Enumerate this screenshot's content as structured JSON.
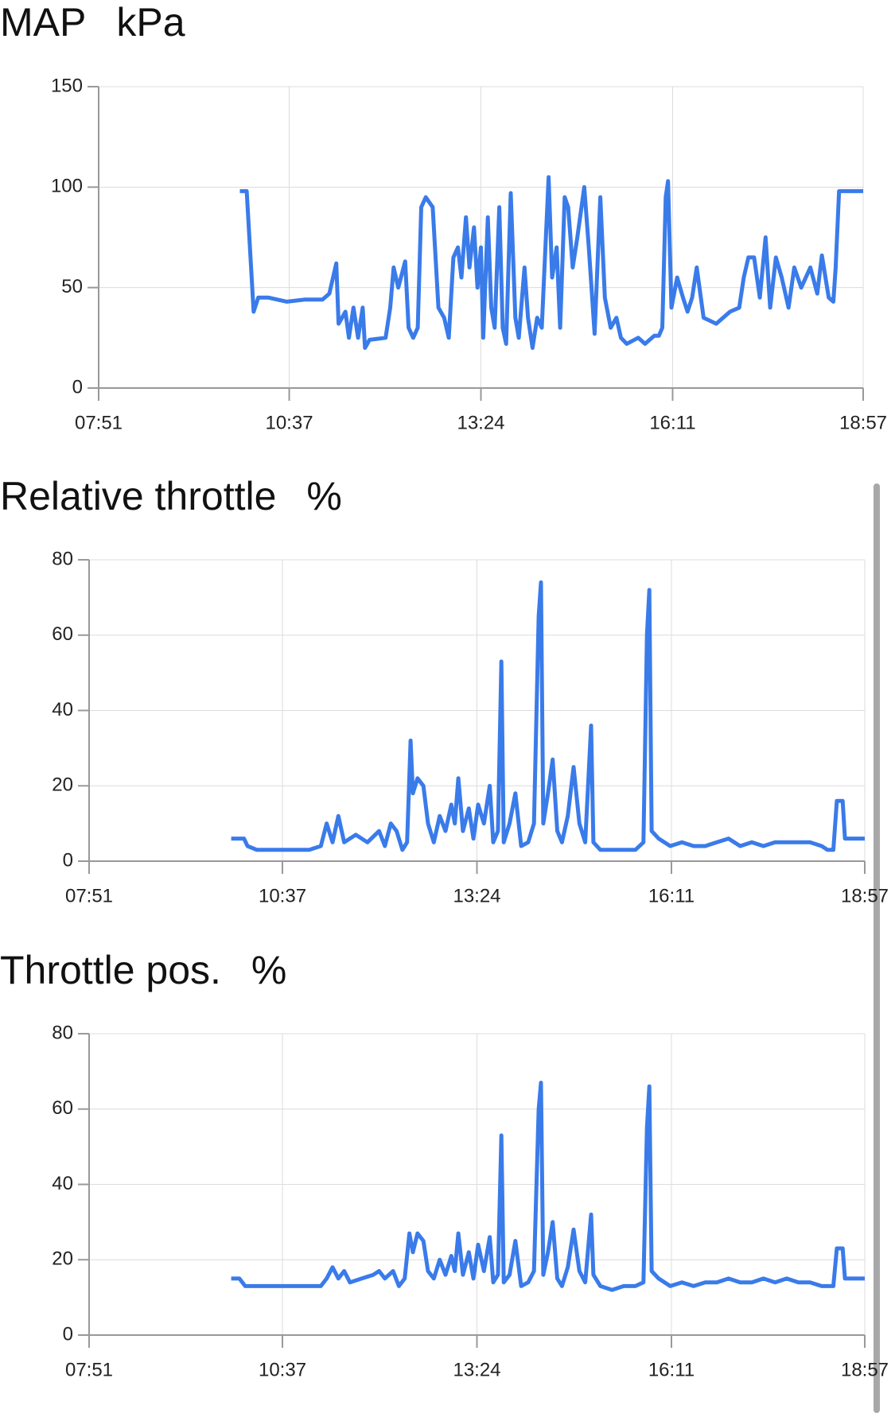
{
  "chart_data": [
    {
      "type": "line",
      "title": "MAP",
      "unit": "kPa",
      "color": "#3a7bea",
      "xlim": [
        "07:51",
        "18:57"
      ],
      "xticks": [
        "07:51",
        "10:37",
        "13:24",
        "16:11",
        "18:57"
      ],
      "ylim": [
        0,
        150
      ],
      "yticks": [
        0,
        50,
        100,
        150
      ],
      "grid": true,
      "x": [
        "09:54",
        "10:00",
        "10:06",
        "10:10",
        "10:19",
        "10:35",
        "10:50",
        "11:06",
        "11:12",
        "11:18",
        "11:20",
        "11:26",
        "11:29",
        "11:33",
        "11:37",
        "11:41",
        "11:43",
        "11:47",
        "12:01",
        "12:05",
        "12:08",
        "12:12",
        "12:18",
        "12:21",
        "12:25",
        "12:29",
        "12:32",
        "12:36",
        "12:42",
        "12:47",
        "12:52",
        "12:56",
        "13:00",
        "13:04",
        "13:07",
        "13:11",
        "13:14",
        "13:18",
        "13:21",
        "13:24",
        "13:26",
        "13:30",
        "13:33",
        "13:36",
        "13:40",
        "13:43",
        "13:46",
        "13:50",
        "13:54",
        "13:57",
        "14:02",
        "14:05",
        "14:09",
        "14:13",
        "14:17",
        "14:23",
        "14:26",
        "14:30",
        "14:33",
        "14:37",
        "14:40",
        "14:44",
        "14:48",
        "14:54",
        "14:58",
        "15:03",
        "15:08",
        "15:12",
        "15:17",
        "15:22",
        "15:26",
        "15:31",
        "15:41",
        "15:47",
        "15:55",
        "15:59",
        "16:02",
        "16:05",
        "16:07",
        "16:10",
        "16:15",
        "16:20",
        "16:24",
        "16:28",
        "16:32",
        "16:38",
        "16:49",
        "17:01",
        "17:09",
        "17:13",
        "17:17",
        "17:22",
        "17:27",
        "17:32",
        "17:36",
        "17:41",
        "17:46",
        "17:52",
        "17:57",
        "18:03",
        "18:11",
        "18:17",
        "18:21",
        "18:27",
        "18:31",
        "18:33",
        "18:36",
        "18:57"
      ],
      "values": [
        98,
        98,
        38,
        45,
        45,
        43,
        44,
        44,
        47,
        62,
        32,
        38,
        25,
        40,
        25,
        40,
        20,
        24,
        25,
        40,
        60,
        50,
        63,
        30,
        25,
        30,
        90,
        95,
        90,
        40,
        35,
        25,
        65,
        70,
        55,
        85,
        60,
        80,
        50,
        70,
        25,
        85,
        40,
        30,
        90,
        30,
        22,
        97,
        35,
        25,
        60,
        35,
        20,
        35,
        30,
        105,
        55,
        70,
        30,
        95,
        90,
        60,
        75,
        100,
        70,
        27,
        95,
        45,
        30,
        35,
        25,
        22,
        25,
        22,
        26,
        26,
        30,
        95,
        103,
        40,
        55,
        45,
        38,
        45,
        60,
        35,
        32,
        38,
        40,
        55,
        65,
        65,
        45,
        75,
        40,
        65,
        55,
        40,
        60,
        50,
        60,
        47,
        66,
        45,
        43,
        60,
        98,
        98
      ]
    },
    {
      "type": "line",
      "title": "Relative throttle",
      "unit": "%",
      "color": "#3a7bea",
      "xlim": [
        "07:51",
        "18:57"
      ],
      "xticks": [
        "07:51",
        "10:37",
        "13:24",
        "16:11",
        "18:57"
      ],
      "ylim": [
        0,
        80
      ],
      "yticks": [
        0,
        20,
        40,
        60,
        80
      ],
      "grid": true,
      "x": [
        "09:53",
        "10:04",
        "10:07",
        "10:15",
        "10:30",
        "10:40",
        "11:00",
        "11:10",
        "11:15",
        "11:20",
        "11:25",
        "11:30",
        "11:40",
        "11:50",
        "12:00",
        "12:05",
        "12:10",
        "12:15",
        "12:20",
        "12:24",
        "12:27",
        "12:29",
        "12:33",
        "12:38",
        "12:42",
        "12:47",
        "12:52",
        "12:57",
        "13:02",
        "13:05",
        "13:08",
        "13:12",
        "13:17",
        "13:21",
        "13:25",
        "13:30",
        "13:35",
        "13:38",
        "13:42",
        "13:45",
        "13:47",
        "13:52",
        "13:57",
        "14:02",
        "14:08",
        "14:13",
        "14:17",
        "14:19",
        "14:21",
        "14:25",
        "14:29",
        "14:33",
        "14:37",
        "14:42",
        "14:47",
        "14:52",
        "14:57",
        "15:02",
        "15:04",
        "15:10",
        "15:20",
        "15:30",
        "15:40",
        "15:47",
        "15:50",
        "15:52",
        "15:54",
        "16:00",
        "16:10",
        "16:20",
        "16:30",
        "16:40",
        "16:50",
        "17:00",
        "17:10",
        "17:20",
        "17:30",
        "17:40",
        "17:50",
        "18:00",
        "18:10",
        "18:20",
        "18:25",
        "18:30",
        "18:33",
        "18:38",
        "18:40",
        "18:57"
      ],
      "values": [
        6,
        6,
        4,
        3,
        3,
        3,
        3,
        4,
        10,
        5,
        12,
        5,
        7,
        5,
        8,
        4,
        10,
        8,
        3,
        5,
        32,
        18,
        22,
        20,
        10,
        5,
        12,
        8,
        15,
        10,
        22,
        8,
        14,
        6,
        15,
        10,
        20,
        5,
        8,
        53,
        5,
        10,
        18,
        4,
        5,
        10,
        65,
        74,
        10,
        18,
        27,
        8,
        5,
        12,
        25,
        10,
        5,
        36,
        5,
        3,
        3,
        3,
        3,
        5,
        60,
        72,
        8,
        6,
        4,
        5,
        4,
        4,
        5,
        6,
        4,
        5,
        4,
        5,
        5,
        5,
        5,
        4,
        3,
        3,
        16,
        16,
        6,
        6
      ]
    },
    {
      "type": "line",
      "title": "Throttle pos.",
      "unit": "%",
      "color": "#3a7bea",
      "xlim": [
        "07:51",
        "18:57"
      ],
      "xticks": [
        "07:51",
        "10:37",
        "13:24",
        "16:11",
        "18:57"
      ],
      "ylim": [
        0,
        80
      ],
      "yticks": [
        0,
        20,
        40,
        60,
        80
      ],
      "grid": true,
      "x": [
        "09:53",
        "10:00",
        "10:05",
        "10:30",
        "11:00",
        "11:10",
        "11:15",
        "11:20",
        "11:25",
        "11:30",
        "11:35",
        "11:45",
        "11:55",
        "12:00",
        "12:05",
        "12:12",
        "12:17",
        "12:22",
        "12:26",
        "12:29",
        "12:33",
        "12:38",
        "12:42",
        "12:47",
        "12:52",
        "12:57",
        "13:02",
        "13:05",
        "13:08",
        "13:12",
        "13:17",
        "13:21",
        "13:25",
        "13:30",
        "13:35",
        "13:38",
        "13:42",
        "13:45",
        "13:47",
        "13:52",
        "13:57",
        "14:02",
        "14:08",
        "14:13",
        "14:17",
        "14:19",
        "14:21",
        "14:25",
        "14:29",
        "14:33",
        "14:37",
        "14:42",
        "14:47",
        "14:52",
        "14:57",
        "15:02",
        "15:04",
        "15:10",
        "15:20",
        "15:30",
        "15:40",
        "15:47",
        "15:50",
        "15:52",
        "15:54",
        "16:00",
        "16:10",
        "16:20",
        "16:30",
        "16:40",
        "16:50",
        "17:00",
        "17:10",
        "17:20",
        "17:30",
        "17:40",
        "17:50",
        "18:00",
        "18:10",
        "18:20",
        "18:30",
        "18:33",
        "18:38",
        "18:40",
        "18:57"
      ],
      "values": [
        15,
        15,
        13,
        13,
        13,
        13,
        15,
        18,
        15,
        17,
        14,
        15,
        16,
        17,
        15,
        17,
        13,
        15,
        27,
        22,
        27,
        25,
        17,
        15,
        20,
        16,
        21,
        17,
        27,
        16,
        22,
        15,
        24,
        17,
        26,
        14,
        16,
        53,
        14,
        16,
        25,
        13,
        14,
        17,
        60,
        67,
        16,
        22,
        30,
        15,
        13,
        18,
        28,
        17,
        14,
        32,
        16,
        13,
        12,
        13,
        13,
        14,
        55,
        66,
        17,
        15,
        13,
        14,
        13,
        14,
        14,
        15,
        14,
        14,
        15,
        14,
        15,
        14,
        14,
        13,
        13,
        23,
        23,
        15,
        15
      ]
    }
  ]
}
